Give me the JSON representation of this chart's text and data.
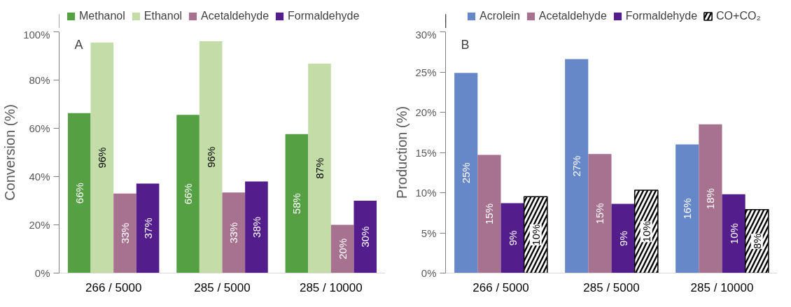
{
  "chart_data": [
    {
      "type": "bar",
      "ylabel": "Conversion (%)",
      "annotations": [
        "A"
      ],
      "categories": [
        "266 / 5000",
        "285 / 5000",
        "285 / 10000"
      ],
      "series": [
        {
          "name": "Methanol",
          "color": "#56a044",
          "values": [
            66.3,
            65.6,
            57.6
          ],
          "value_labels": [
            "66%",
            "66%",
            "58%"
          ]
        },
        {
          "name": "Ethanol",
          "color": "#c3dca8",
          "values": [
            95.6,
            96.1,
            86.8
          ],
          "value_labels": [
            "96%",
            "96%",
            "87%"
          ]
        },
        {
          "name": "Acetaldehyde",
          "color": "#a67290",
          "values": [
            33.0,
            33.4,
            20.0
          ],
          "value_labels": [
            "33%",
            "33%",
            "20%"
          ]
        },
        {
          "name": "Formaldehyde",
          "color": "#531d8b",
          "values": [
            37.1,
            38.0,
            30.0
          ],
          "value_labels": [
            "37%",
            "38%",
            "30%"
          ]
        }
      ],
      "ylim": [
        0,
        100
      ],
      "yticks": [
        {
          "value": 0,
          "label": "0%"
        },
        {
          "value": 20,
          "label": "20%"
        },
        {
          "value": 40,
          "label": "40%"
        },
        {
          "value": 60,
          "label": "60%"
        },
        {
          "value": 80,
          "label": "80%"
        },
        {
          "value": 100,
          "label": "100%"
        }
      ],
      "grid": false,
      "legend": "top"
    },
    {
      "type": "bar",
      "ylabel": "Production (%)",
      "annotations": [
        "B"
      ],
      "categories": [
        "266 / 5000",
        "285 / 5000",
        "285 / 10000"
      ],
      "series": [
        {
          "name": "Acrolein",
          "color": "#6788c8",
          "values": [
            24.9,
            26.6,
            16.0
          ],
          "value_labels": [
            "25%",
            "27%",
            "16%"
          ]
        },
        {
          "name": "Acetaldehyde",
          "color": "#a67290",
          "values": [
            14.7,
            14.8,
            18.5
          ],
          "value_labels": [
            "15%",
            "15%",
            "18%"
          ]
        },
        {
          "name": "Formaldehyde",
          "color": "#531d8b",
          "values": [
            8.7,
            8.6,
            9.8
          ],
          "value_labels": [
            "9%",
            "9%",
            "10%"
          ]
        },
        {
          "name": "CO+CO₂",
          "color": "#000000",
          "values": [
            9.5,
            10.3,
            7.9
          ],
          "value_labels": [
            "10%",
            "10%",
            "8%"
          ]
        }
      ],
      "ylim": [
        0,
        30
      ],
      "yticks": [
        {
          "value": 0,
          "label": "0%"
        },
        {
          "value": 5,
          "label": "5%"
        },
        {
          "value": 10,
          "label": "10%"
        },
        {
          "value": 15,
          "label": "15%"
        },
        {
          "value": 20,
          "label": "20%"
        },
        {
          "value": 25,
          "label": "25%"
        },
        {
          "value": 30,
          "label": "30%"
        }
      ],
      "grid": false,
      "legend": "top"
    }
  ]
}
